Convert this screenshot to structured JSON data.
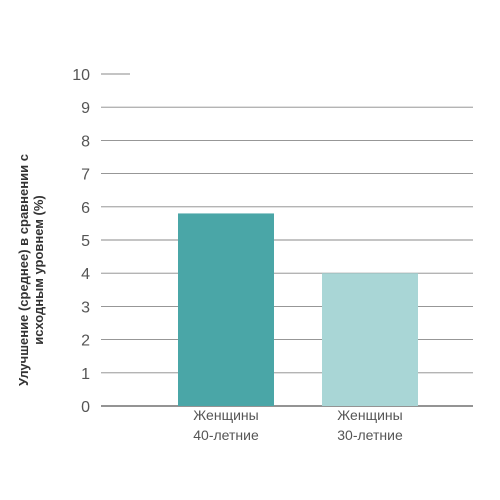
{
  "chart_data": {
    "type": "bar",
    "categories": [
      [
        "Женщины",
        "40-летние"
      ],
      [
        "Женщины",
        "30-летние"
      ]
    ],
    "values": [
      5.8,
      4.0
    ],
    "bar_colors": [
      "#4aa6a7",
      "#a9d6d6"
    ],
    "ylabel_lines": [
      "Улучшение (среднее) в сравнении с",
      "исходным уровнем (%)"
    ],
    "ylim": [
      0,
      10
    ],
    "yticks": [
      0,
      1,
      2,
      3,
      4,
      5,
      6,
      7,
      8,
      9,
      10
    ],
    "grid": true,
    "grid_color": "#888888",
    "axis_color": "#555555"
  }
}
